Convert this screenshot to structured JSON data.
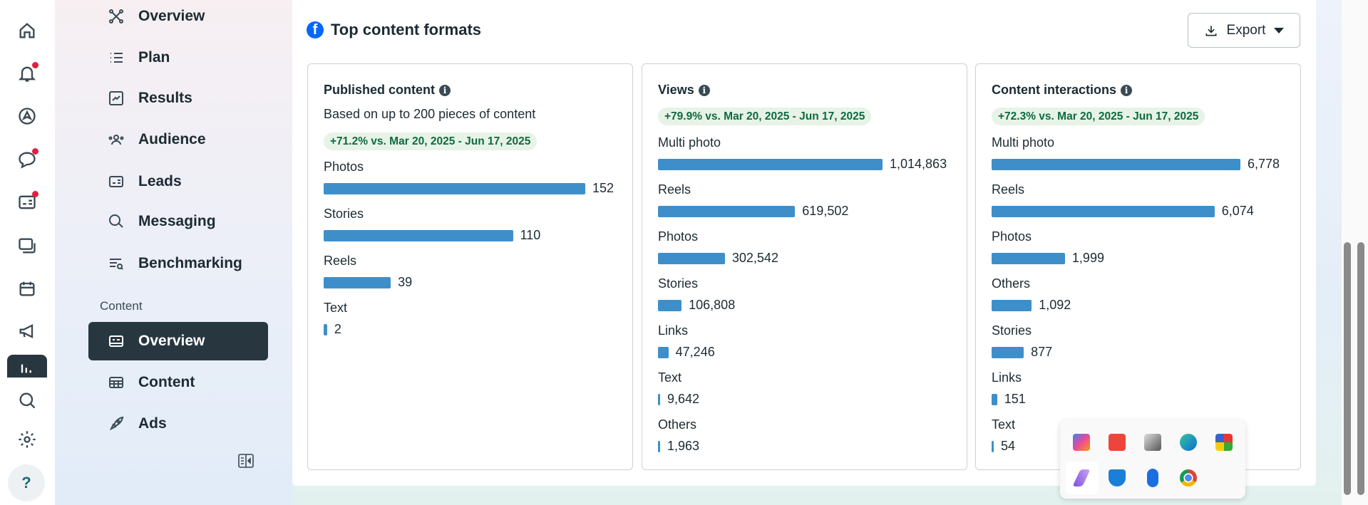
{
  "rail": {
    "items": [
      "home",
      "notifications",
      "ads-manager",
      "inbox",
      "leads",
      "pages",
      "planner",
      "campaigns",
      "insights",
      "search",
      "settings",
      "help"
    ],
    "help_label": "?"
  },
  "nav": {
    "items": [
      {
        "label": "Overview",
        "icon": "network-icon"
      },
      {
        "label": "Plan",
        "icon": "list-icon"
      },
      {
        "label": "Results",
        "icon": "chart-icon"
      },
      {
        "label": "Audience",
        "icon": "people-icon"
      },
      {
        "label": "Leads",
        "icon": "id-card-icon"
      },
      {
        "label": "Messaging",
        "icon": "chat-icon"
      },
      {
        "label": "Benchmarking",
        "icon": "benchmark-icon"
      }
    ],
    "section": "Content",
    "content_items": [
      {
        "label": "Overview",
        "active": true
      },
      {
        "label": "Content"
      },
      {
        "label": "Ads"
      }
    ]
  },
  "header": {
    "title": "Top content formats",
    "export_label": "Export"
  },
  "colors": {
    "bar": "#3e8fc9",
    "badge_text": "#0c6b3f",
    "badge_bg": "#e8f3e8",
    "active_nav": "#283640",
    "facebook": "#0866ff"
  },
  "panels": [
    {
      "title": "Published content",
      "subtitle": "Based on up to 200 pieces of content",
      "badge": "+71.2% vs. Mar 20, 2025 - Jun 17, 2025",
      "rows": [
        {
          "label": "Photos",
          "value": 152,
          "display": "152"
        },
        {
          "label": "Stories",
          "value": 110,
          "display": "110"
        },
        {
          "label": "Reels",
          "value": 39,
          "display": "39"
        },
        {
          "label": "Text",
          "value": 2,
          "display": "2"
        }
      ]
    },
    {
      "title": "Views",
      "badge": "+79.9% vs. Mar 20, 2025 - Jun 17, 2025",
      "rows": [
        {
          "label": "Multi photo",
          "value": 1014863,
          "display": "1,014,863"
        },
        {
          "label": "Reels",
          "value": 619502,
          "display": "619,502"
        },
        {
          "label": "Photos",
          "value": 302542,
          "display": "302,542"
        },
        {
          "label": "Stories",
          "value": 106808,
          "display": "106,808"
        },
        {
          "label": "Links",
          "value": 47246,
          "display": "47,246"
        },
        {
          "label": "Text",
          "value": 9642,
          "display": "9,642"
        },
        {
          "label": "Others",
          "value": 1963,
          "display": "1,963"
        }
      ]
    },
    {
      "title": "Content interactions",
      "badge": "+72.3% vs. Mar 20, 2025 - Jun 17, 2025",
      "rows": [
        {
          "label": "Multi photo",
          "value": 6778,
          "display": "6,778"
        },
        {
          "label": "Reels",
          "value": 6074,
          "display": "6,074"
        },
        {
          "label": "Photos",
          "value": 1999,
          "display": "1,999"
        },
        {
          "label": "Others",
          "value": 1092,
          "display": "1,092"
        },
        {
          "label": "Stories",
          "value": 877,
          "display": "877"
        },
        {
          "label": "Links",
          "value": 151,
          "display": "151"
        },
        {
          "label": "Text",
          "value": 54,
          "display": "54"
        }
      ]
    }
  ],
  "tray": {
    "icons": [
      "copilot-icon",
      "anydesk-icon",
      "printer-icon",
      "edge-icon",
      "font-app-icon",
      "pen-icon",
      "defender-icon",
      "bluetooth-icon",
      "chrome-icon"
    ]
  }
}
